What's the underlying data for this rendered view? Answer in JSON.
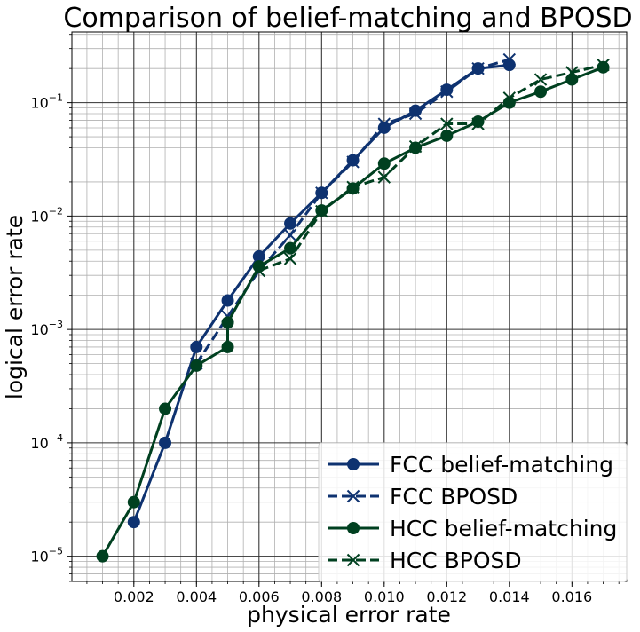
{
  "chart_data": {
    "type": "line",
    "title": "Comparison of belief-matching and BPOSD",
    "xlabel": "physical error rate",
    "ylabel": "logical error rate",
    "x_scale": "linear",
    "y_scale": "log",
    "xlim": [
      2e-05,
      0.01775
    ],
    "ylim": [
      6e-06,
      0.42
    ],
    "grid": "major and minor",
    "legend_position": "lower right",
    "x_ticks": [
      {
        "value": 0.002,
        "label": "0.002"
      },
      {
        "value": 0.004,
        "label": "0.004"
      },
      {
        "value": 0.006,
        "label": "0.006"
      },
      {
        "value": 0.008,
        "label": "0.008"
      },
      {
        "value": 0.01,
        "label": "0.010"
      },
      {
        "value": 0.012,
        "label": "0.012"
      },
      {
        "value": 0.014,
        "label": "0.014"
      },
      {
        "value": 0.016,
        "label": "0.016"
      }
    ],
    "y_ticks": [
      {
        "value": 1e-05,
        "base": "10",
        "exp": "−5"
      },
      {
        "value": 0.0001,
        "base": "10",
        "exp": "−4"
      },
      {
        "value": 0.001,
        "base": "10",
        "exp": "−3"
      },
      {
        "value": 0.01,
        "base": "10",
        "exp": "−2"
      },
      {
        "value": 0.1,
        "base": "10",
        "exp": "−1"
      }
    ],
    "series": [
      {
        "name": "FCC belief-matching",
        "color": "#0e3270",
        "line": "solid",
        "marker": "circle",
        "x": [
          0.002,
          0.003,
          0.004,
          0.005,
          0.006,
          0.007,
          0.008,
          0.009,
          0.01,
          0.011,
          0.012,
          0.013,
          0.014
        ],
        "y": [
          2e-05,
          0.0001,
          0.0007,
          0.0018,
          0.0044,
          0.0086,
          0.016,
          0.031,
          0.06,
          0.085,
          0.13,
          0.2,
          0.215
        ]
      },
      {
        "name": "FCC BPOSD",
        "color": "#0e3270",
        "line": "dashed",
        "marker": "x",
        "x": [
          0.004,
          0.005,
          0.006,
          0.007,
          0.008,
          0.009,
          0.01,
          0.011,
          0.012,
          0.013,
          0.014
        ],
        "y": [
          0.0005,
          0.0013,
          0.0033,
          0.0068,
          0.016,
          0.03,
          0.065,
          0.08,
          0.125,
          0.2,
          0.24
        ]
      },
      {
        "name": "HCC belief-matching",
        "color": "#004020",
        "line": "solid",
        "marker": "circle",
        "x": [
          0.001,
          0.002,
          0.003,
          0.004,
          0.005,
          0.005,
          0.006,
          0.007,
          0.008,
          0.009,
          0.01,
          0.011,
          0.012,
          0.013,
          0.014,
          0.015,
          0.016,
          0.017
        ],
        "y": [
          1e-05,
          3e-05,
          0.0002,
          0.00048,
          0.0007,
          0.00115,
          0.0036,
          0.0052,
          0.0112,
          0.0175,
          0.029,
          0.04,
          0.051,
          0.068,
          0.1,
          0.125,
          0.16,
          0.205
        ]
      },
      {
        "name": "HCC BPOSD",
        "color": "#004020",
        "line": "dashed",
        "marker": "x",
        "x": [
          0.006,
          0.007,
          0.008,
          0.009,
          0.01,
          0.011,
          0.012,
          0.013,
          0.014,
          0.015,
          0.016,
          0.017
        ],
        "y": [
          0.0033,
          0.0042,
          0.011,
          0.018,
          0.022,
          0.041,
          0.065,
          0.065,
          0.11,
          0.16,
          0.185,
          0.215
        ]
      }
    ]
  }
}
